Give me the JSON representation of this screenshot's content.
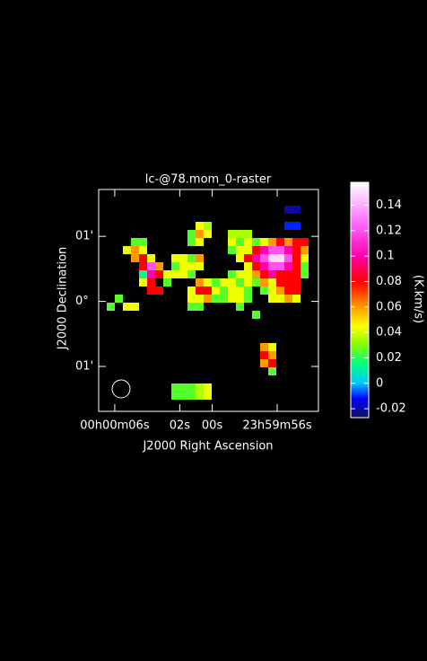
{
  "chart_data": {
    "type": "raster",
    "title": "lc-@78.mom_0-raster",
    "x_label": "J2000 Right Ascension",
    "y_label": "J2000 Declination",
    "colorbar_label": "(K.km/s)",
    "xlim": [
      6.99,
      -6.54
    ],
    "xticks": [
      {
        "value": 6,
        "label": "00h00m06s"
      },
      {
        "value": 2,
        "label": "02s"
      },
      {
        "value": 0,
        "label": "00s"
      },
      {
        "value": -4,
        "label": "23h59m56s"
      }
    ],
    "ylim": [
      -1.69,
      1.72
    ],
    "yticks": [
      {
        "value": 1,
        "label": "01'"
      },
      {
        "value": 0,
        "label": "0°"
      },
      {
        "value": -1,
        "label": "01'"
      }
    ],
    "clim": [
      -0.027,
      0.158
    ],
    "cticks": [
      -0.02,
      0,
      0.02,
      0.04,
      0.06,
      0.08,
      0.1,
      0.12,
      0.14
    ],
    "colormap": [
      [
        -0.027,
        "#10105a"
      ],
      [
        -0.012,
        "#0000ff"
      ],
      [
        0.0,
        "#00c8ff"
      ],
      [
        0.015,
        "#00ff80"
      ],
      [
        0.03,
        "#80ff00"
      ],
      [
        0.045,
        "#ffff00"
      ],
      [
        0.06,
        "#ff9900"
      ],
      [
        0.08,
        "#ff0000"
      ],
      [
        0.1,
        "#ff00aa"
      ],
      [
        0.125,
        "#ff66ff"
      ],
      [
        0.158,
        "#ffffff"
      ]
    ],
    "pixels": [
      [
        23,
        2,
        -0.02
      ],
      [
        24,
        2,
        -0.02
      ],
      [
        23,
        4,
        -0.01
      ],
      [
        24,
        4,
        -0.01
      ],
      [
        12,
        4,
        0.043
      ],
      [
        13,
        4,
        0.035
      ],
      [
        11,
        5,
        0.025
      ],
      [
        12,
        5,
        0.06
      ],
      [
        13,
        5,
        0.043
      ],
      [
        16,
        5,
        0.035
      ],
      [
        17,
        5,
        0.035
      ],
      [
        18,
        5,
        0.035
      ],
      [
        4,
        6,
        0.025
      ],
      [
        5,
        6,
        0.025
      ],
      [
        11,
        6,
        0.025
      ],
      [
        12,
        6,
        0.043
      ],
      [
        16,
        6,
        0.043
      ],
      [
        17,
        6,
        0.025
      ],
      [
        18,
        6,
        0.043
      ],
      [
        19,
        6,
        0.025
      ],
      [
        20,
        6,
        0.043
      ],
      [
        21,
        6,
        0.06
      ],
      [
        22,
        6,
        0.08
      ],
      [
        23,
        6,
        0.06
      ],
      [
        24,
        6,
        0.08
      ],
      [
        25,
        6,
        0.08
      ],
      [
        3,
        7,
        0.043
      ],
      [
        4,
        7,
        0.06
      ],
      [
        5,
        7,
        0.043
      ],
      [
        16,
        7,
        0.025
      ],
      [
        17,
        7,
        0.043
      ],
      [
        18,
        7,
        0.043
      ],
      [
        19,
        7,
        0.08
      ],
      [
        20,
        7,
        0.1
      ],
      [
        21,
        7,
        0.12
      ],
      [
        22,
        7,
        0.12
      ],
      [
        23,
        7,
        0.1
      ],
      [
        24,
        7,
        0.08
      ],
      [
        25,
        7,
        0.06
      ],
      [
        4,
        8,
        0.06
      ],
      [
        5,
        8,
        0.08
      ],
      [
        6,
        8,
        0.043
      ],
      [
        9,
        8,
        0.043
      ],
      [
        10,
        8,
        0.043
      ],
      [
        11,
        8,
        0.025
      ],
      [
        12,
        8,
        0.06
      ],
      [
        17,
        8,
        0.043
      ],
      [
        18,
        8,
        0.08
      ],
      [
        19,
        8,
        0.1
      ],
      [
        20,
        8,
        0.12
      ],
      [
        21,
        8,
        0.15
      ],
      [
        22,
        8,
        0.15
      ],
      [
        23,
        8,
        0.12
      ],
      [
        24,
        8,
        0.08
      ],
      [
        25,
        8,
        0.043
      ],
      [
        5,
        9,
        0.08
      ],
      [
        6,
        9,
        0.12
      ],
      [
        7,
        9,
        0.06
      ],
      [
        9,
        9,
        0.025
      ],
      [
        10,
        9,
        0.043
      ],
      [
        11,
        9,
        0.043
      ],
      [
        12,
        9,
        0.043
      ],
      [
        18,
        9,
        0.043
      ],
      [
        19,
        9,
        0.08
      ],
      [
        20,
        9,
        0.1
      ],
      [
        21,
        9,
        0.12
      ],
      [
        22,
        9,
        0.12
      ],
      [
        23,
        9,
        0.1
      ],
      [
        24,
        9,
        0.08
      ],
      [
        25,
        9,
        0.025
      ],
      [
        5,
        10,
        0.015
      ],
      [
        6,
        10,
        0.1
      ],
      [
        7,
        10,
        0.08
      ],
      [
        8,
        10,
        0.043
      ],
      [
        9,
        10,
        0.043
      ],
      [
        10,
        10,
        0.043
      ],
      [
        11,
        10,
        0.025
      ],
      [
        16,
        10,
        0.025
      ],
      [
        17,
        10,
        0.043
      ],
      [
        18,
        10,
        0.043
      ],
      [
        19,
        10,
        0.06
      ],
      [
        20,
        10,
        0.08
      ],
      [
        21,
        10,
        0.1
      ],
      [
        22,
        10,
        0.08
      ],
      [
        23,
        10,
        0.08
      ],
      [
        24,
        10,
        0.08
      ],
      [
        25,
        10,
        0.025
      ],
      [
        5,
        11,
        0.043
      ],
      [
        6,
        11,
        0.08
      ],
      [
        8,
        11,
        0.025
      ],
      [
        12,
        11,
        0.06
      ],
      [
        13,
        11,
        0.043
      ],
      [
        14,
        11,
        0.025
      ],
      [
        15,
        11,
        0.043
      ],
      [
        16,
        11,
        0.043
      ],
      [
        17,
        11,
        0.025
      ],
      [
        18,
        11,
        0.043
      ],
      [
        19,
        11,
        0.025
      ],
      [
        20,
        11,
        0.06
      ],
      [
        21,
        11,
        0.043
      ],
      [
        22,
        11,
        0.08
      ],
      [
        23,
        11,
        0.08
      ],
      [
        24,
        11,
        0.08
      ],
      [
        6,
        12,
        0.08
      ],
      [
        7,
        12,
        0.08
      ],
      [
        11,
        12,
        0.043
      ],
      [
        12,
        12,
        0.08
      ],
      [
        13,
        12,
        0.08
      ],
      [
        14,
        12,
        0.043
      ],
      [
        15,
        12,
        0.025
      ],
      [
        16,
        12,
        0.043
      ],
      [
        17,
        12,
        0.043
      ],
      [
        18,
        12,
        0.025
      ],
      [
        20,
        12,
        0.025
      ],
      [
        21,
        12,
        0.043
      ],
      [
        22,
        12,
        0.06
      ],
      [
        23,
        12,
        0.08
      ],
      [
        24,
        12,
        0.08
      ],
      [
        2,
        13,
        0.025
      ],
      [
        11,
        13,
        0.043
      ],
      [
        12,
        13,
        0.043
      ],
      [
        13,
        13,
        0.06
      ],
      [
        14,
        13,
        0.025
      ],
      [
        15,
        13,
        0.025
      ],
      [
        16,
        13,
        0.043
      ],
      [
        17,
        13,
        0.043
      ],
      [
        18,
        13,
        0.025
      ],
      [
        21,
        13,
        0.043
      ],
      [
        22,
        13,
        0.043
      ],
      [
        23,
        13,
        0.06
      ],
      [
        24,
        13,
        0.043
      ],
      [
        1,
        14,
        0.025
      ],
      [
        3,
        14,
        0.043
      ],
      [
        4,
        14,
        0.043
      ],
      [
        11,
        14,
        0.025
      ],
      [
        12,
        14,
        0.025
      ],
      [
        17,
        14,
        0.025
      ],
      [
        19,
        15,
        0.025
      ],
      [
        20,
        19,
        0.06
      ],
      [
        21,
        19,
        0.043
      ],
      [
        20,
        20,
        0.08
      ],
      [
        21,
        20,
        0.06
      ],
      [
        20,
        21,
        0.06
      ],
      [
        21,
        21,
        0.08
      ],
      [
        21,
        22,
        0.025
      ],
      [
        9,
        24,
        0.025
      ],
      [
        10,
        24,
        0.025
      ],
      [
        11,
        24,
        0.025
      ],
      [
        12,
        24,
        0.035
      ],
      [
        13,
        24,
        0.043
      ],
      [
        9,
        25,
        0.025
      ],
      [
        10,
        25,
        0.025
      ],
      [
        11,
        25,
        0.025
      ],
      [
        12,
        25,
        0.035
      ],
      [
        13,
        25,
        0.043
      ]
    ]
  }
}
